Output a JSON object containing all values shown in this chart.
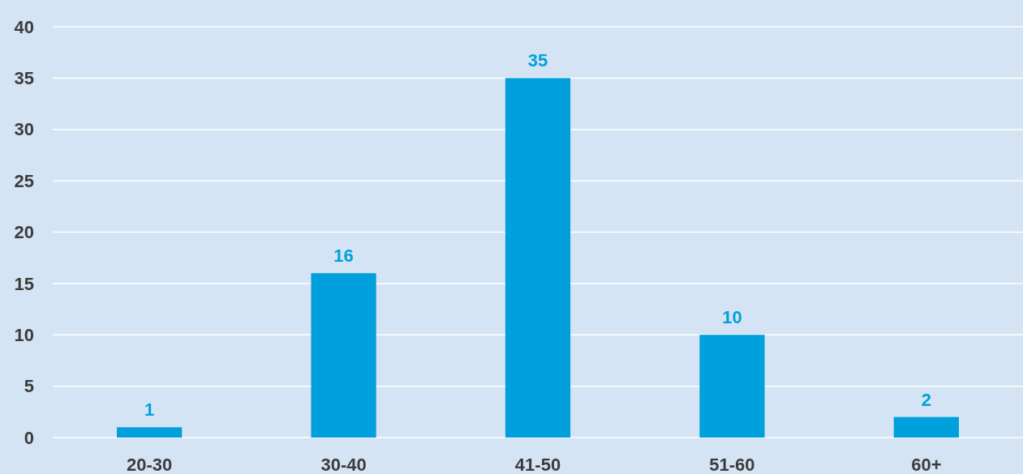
{
  "chart_data": {
    "type": "bar",
    "categories": [
      "20-30",
      "30-40",
      "41-50",
      "51-60",
      "60+"
    ],
    "values": [
      1,
      16,
      35,
      10,
      2
    ],
    "color": "#00a0dc",
    "ylim": [
      0,
      40
    ],
    "yticks": [
      0,
      5,
      10,
      15,
      20,
      25,
      30,
      35,
      40
    ],
    "grid": "y",
    "data_labels": true
  }
}
